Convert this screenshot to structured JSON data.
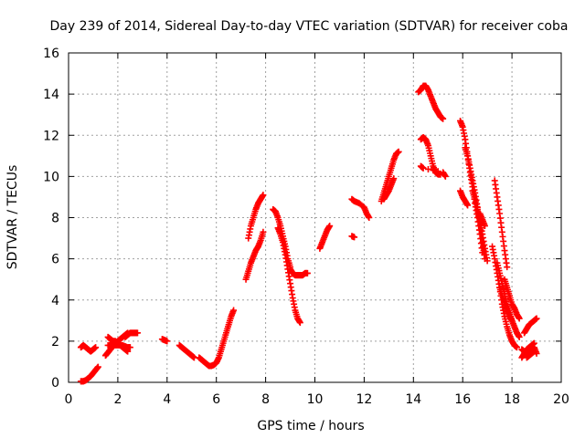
{
  "chart_data": {
    "type": "scatter",
    "title": "Day 239 of 2014, Sidereal Day-to-day VTEC variation (SDTVAR) for receiver coba",
    "xlabel": "GPS time / hours",
    "ylabel": "SDTVAR / TECUs",
    "xlim": [
      0,
      20
    ],
    "ylim": [
      0,
      16
    ],
    "xticks": [
      0,
      2,
      4,
      6,
      8,
      10,
      12,
      14,
      16,
      18,
      20
    ],
    "yticks": [
      0,
      2,
      4,
      6,
      8,
      10,
      12,
      14,
      16
    ],
    "grid": true,
    "marker": "+",
    "color": "#ff0000",
    "segments": [
      {
        "x": [
          0.5,
          0.6,
          0.7,
          0.8,
          0.9,
          1.0,
          1.1
        ],
        "y": [
          1.7,
          1.8,
          1.7,
          1.6,
          1.5,
          1.6,
          1.7
        ]
      },
      {
        "x": [
          0.5,
          0.6,
          0.7,
          0.8,
          0.9,
          1.0,
          1.1,
          1.2
        ],
        "y": [
          0.05,
          0.05,
          0.1,
          0.2,
          0.3,
          0.45,
          0.6,
          0.75
        ]
      },
      {
        "x": [
          1.5,
          1.6,
          1.7,
          1.8,
          1.9,
          2.0,
          2.1,
          2.2,
          2.3,
          2.4
        ],
        "y": [
          1.3,
          1.45,
          1.6,
          1.75,
          1.9,
          2.0,
          2.1,
          2.2,
          2.3,
          2.4
        ]
      },
      {
        "x": [
          1.6,
          1.7,
          1.8,
          1.9,
          2.0,
          2.1,
          2.2,
          2.3,
          2.4
        ],
        "y": [
          2.2,
          2.1,
          2.0,
          2.0,
          1.9,
          1.8,
          1.7,
          1.6,
          1.5
        ]
      },
      {
        "x": [
          1.6,
          1.8,
          2.0,
          2.2,
          2.4,
          2.5
        ],
        "y": [
          1.8,
          1.8,
          1.8,
          1.8,
          1.7,
          1.7
        ]
      },
      {
        "x": [
          2.3,
          2.4,
          2.5,
          2.6,
          2.7,
          2.8
        ],
        "y": [
          2.2,
          2.3,
          2.4,
          2.4,
          2.4,
          2.4
        ]
      },
      {
        "x": [
          3.8,
          3.9,
          4.0
        ],
        "y": [
          2.1,
          2.05,
          2.0
        ]
      },
      {
        "x": [
          4.5,
          4.6,
          4.7,
          4.8,
          4.9,
          5.0,
          5.1
        ],
        "y": [
          1.8,
          1.7,
          1.6,
          1.5,
          1.4,
          1.3,
          1.2
        ]
      },
      {
        "x": [
          5.3,
          5.4,
          5.5,
          5.6,
          5.7,
          5.8,
          5.9,
          6.0,
          6.1,
          6.2,
          6.3,
          6.4,
          6.5,
          6.6,
          6.7
        ],
        "y": [
          1.2,
          1.1,
          1.0,
          0.9,
          0.8,
          0.8,
          0.85,
          0.95,
          1.2,
          1.6,
          2.0,
          2.4,
          2.8,
          3.2,
          3.5
        ]
      },
      {
        "x": [
          7.2,
          7.3,
          7.4,
          7.5,
          7.6,
          7.7,
          7.8,
          7.9
        ],
        "y": [
          5.0,
          5.4,
          5.8,
          6.1,
          6.4,
          6.6,
          6.9,
          7.3
        ]
      },
      {
        "x": [
          7.3,
          7.4,
          7.5,
          7.6,
          7.7,
          7.8,
          7.9
        ],
        "y": [
          7.0,
          7.6,
          8.0,
          8.4,
          8.7,
          8.9,
          9.1
        ]
      },
      {
        "x": [
          8.3,
          8.4,
          8.5,
          8.6,
          8.7,
          8.8,
          8.9,
          9.0
        ],
        "y": [
          8.4,
          8.3,
          8.0,
          7.6,
          7.1,
          6.6,
          6.0,
          5.6
        ]
      },
      {
        "x": [
          8.5,
          8.6,
          8.7,
          8.8,
          8.9,
          9.0,
          9.1,
          9.2,
          9.3,
          9.4
        ],
        "y": [
          7.5,
          7.2,
          6.8,
          6.2,
          5.5,
          4.8,
          4.1,
          3.5,
          3.1,
          2.9
        ]
      },
      {
        "x": [
          9.0,
          9.1,
          9.2,
          9.3,
          9.4,
          9.5,
          9.6,
          9.7
        ],
        "y": [
          5.5,
          5.3,
          5.2,
          5.2,
          5.2,
          5.2,
          5.3,
          5.3
        ]
      },
      {
        "x": [
          10.2,
          10.3,
          10.4,
          10.5,
          10.6
        ],
        "y": [
          6.5,
          6.8,
          7.1,
          7.4,
          7.6
        ]
      },
      {
        "x": [
          11.5,
          11.6
        ],
        "y": [
          7.1,
          7.05
        ]
      },
      {
        "x": [
          11.5,
          11.6,
          11.8,
          12.0,
          12.1,
          12.2
        ],
        "y": [
          8.9,
          8.8,
          8.7,
          8.5,
          8.2,
          8.0
        ]
      },
      {
        "x": [
          12.7,
          12.8,
          12.9,
          13.0,
          13.1,
          13.2,
          13.3,
          13.4
        ],
        "y": [
          8.8,
          9.2,
          9.6,
          10.0,
          10.4,
          10.8,
          11.1,
          11.2
        ]
      },
      {
        "x": [
          12.8,
          12.9,
          13.0,
          13.1,
          13.2
        ],
        "y": [
          8.9,
          9.1,
          9.3,
          9.6,
          9.9
        ]
      },
      {
        "x": [
          14.2,
          14.3,
          14.4,
          14.5,
          14.6,
          14.7,
          14.8,
          14.9,
          15.0,
          15.1,
          15.2
        ],
        "y": [
          14.1,
          14.2,
          14.4,
          14.4,
          14.2,
          13.9,
          13.6,
          13.3,
          13.1,
          12.9,
          12.8
        ]
      },
      {
        "x": [
          14.3,
          14.4,
          14.5,
          14.6,
          14.7,
          14.8,
          14.9,
          15.0,
          15.1
        ],
        "y": [
          11.8,
          11.9,
          11.8,
          11.5,
          11.0,
          10.5,
          10.2,
          10.1,
          10.1
        ]
      },
      {
        "x": [
          14.3,
          14.4,
          15.2,
          15.3
        ],
        "y": [
          10.5,
          10.4,
          10.2,
          10.0
        ]
      },
      {
        "x": [
          15.9,
          16.0,
          16.1,
          16.2,
          16.3,
          16.4,
          16.5,
          16.6,
          16.7,
          16.8
        ],
        "y": [
          12.7,
          12.4,
          11.8,
          11.0,
          10.2,
          9.5,
          8.7,
          8.0,
          7.2,
          6.3
        ]
      },
      {
        "x": [
          16.1,
          16.2,
          16.3,
          16.4,
          16.5,
          16.6,
          16.7,
          16.8,
          16.9
        ],
        "y": [
          11.4,
          11.0,
          10.4,
          9.8,
          9.2,
          8.5,
          7.6,
          6.8,
          6.0
        ]
      },
      {
        "x": [
          16.4,
          16.5,
          16.6,
          16.7,
          16.8,
          16.9,
          17.0
        ],
        "y": [
          9.3,
          8.9,
          8.4,
          7.8,
          7.2,
          6.5,
          5.9
        ]
      },
      {
        "x": [
          15.9,
          16.0,
          16.1,
          16.2
        ],
        "y": [
          9.3,
          9.0,
          8.8,
          8.6
        ]
      },
      {
        "x": [
          16.7,
          16.8,
          16.9
        ],
        "y": [
          8.2,
          7.9,
          7.6
        ]
      },
      {
        "x": [
          17.2,
          17.3,
          17.4,
          17.5,
          17.6,
          17.7,
          17.8,
          17.9,
          18.0,
          18.1,
          18.2
        ],
        "y": [
          6.6,
          6.0,
          5.3,
          4.6,
          3.8,
          3.2,
          2.7,
          2.3,
          2.0,
          1.8,
          1.7
        ]
      },
      {
        "x": [
          17.3,
          17.4,
          17.5,
          17.6,
          17.7,
          17.8
        ],
        "y": [
          9.8,
          9.0,
          8.2,
          7.3,
          6.4,
          5.6
        ]
      },
      {
        "x": [
          17.4,
          17.5,
          17.6,
          17.7,
          17.8,
          17.9,
          18.0,
          18.1,
          18.2,
          18.3
        ],
        "y": [
          5.8,
          5.3,
          4.8,
          4.3,
          3.8,
          3.4,
          3.0,
          2.7,
          2.4,
          2.2
        ]
      },
      {
        "x": [
          17.7,
          17.8,
          17.9,
          18.0,
          18.1,
          18.2,
          18.3
        ],
        "y": [
          5.0,
          4.6,
          4.2,
          3.8,
          3.6,
          3.3,
          3.1
        ]
      },
      {
        "x": [
          17.5,
          17.6,
          17.7,
          17.8,
          17.9,
          18.0
        ],
        "y": [
          4.6,
          4.2,
          3.8,
          3.5,
          3.2,
          3.0
        ]
      },
      {
        "x": [
          18.4,
          18.5,
          18.6,
          18.7,
          18.8,
          18.9
        ],
        "y": [
          1.2,
          1.4,
          1.6,
          1.7,
          1.8,
          1.9
        ]
      },
      {
        "x": [
          18.4,
          18.5,
          18.6,
          18.7,
          18.8,
          18.9,
          19.0
        ],
        "y": [
          1.6,
          1.5,
          1.4,
          1.4,
          1.5,
          1.7,
          1.4
        ]
      },
      {
        "x": [
          18.5,
          18.6,
          18.7,
          18.8,
          18.9,
          19.0
        ],
        "y": [
          2.4,
          2.6,
          2.8,
          2.9,
          3.0,
          3.1
        ]
      },
      {
        "x": [
          18.6,
          18.7,
          18.8,
          18.9
        ],
        "y": [
          1.2,
          1.3,
          1.4,
          1.5
        ]
      }
    ]
  }
}
